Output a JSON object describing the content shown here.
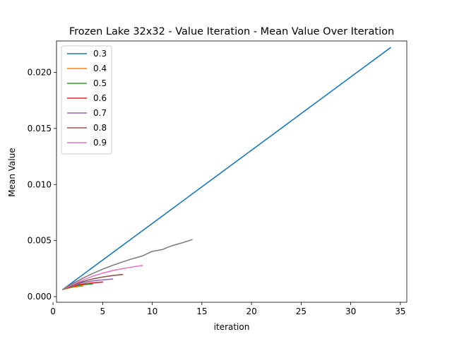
{
  "chart_data": {
    "type": "line",
    "title": "Frozen Lake 32x32 - Value Iteration - Mean Value Over Iteration",
    "xlabel": "iteration",
    "ylabel": "Mean Value",
    "xlim": [
      0.35,
      35.65
    ],
    "ylim": [
      -0.0005,
      0.0228
    ],
    "xticks": [
      0,
      5,
      10,
      15,
      20,
      25,
      30,
      35
    ],
    "xtick_labels": [
      "0",
      "5",
      "10",
      "15",
      "20",
      "25",
      "30",
      "35"
    ],
    "yticks": [
      0.0,
      0.005,
      0.01,
      0.015,
      0.02
    ],
    "ytick_labels": [
      "0.000",
      "0.005",
      "0.010",
      "0.015",
      "0.020"
    ],
    "grid": false,
    "legend_position": "upper-left",
    "series": [
      {
        "name": "0.3",
        "color": "#1f77b4",
        "x": [
          1,
          34
        ],
        "y": [
          0.00065,
          0.0222
        ]
      },
      {
        "name": "0.4",
        "color": "#ff7f0e",
        "x": [
          1,
          2,
          3
        ],
        "y": [
          0.00065,
          0.00085,
          0.00095
        ]
      },
      {
        "name": "0.5",
        "color": "#2ca02c",
        "x": [
          1,
          2,
          3,
          4
        ],
        "y": [
          0.00065,
          0.0009,
          0.00105,
          0.00115
        ]
      },
      {
        "name": "0.6",
        "color": "#d62728",
        "x": [
          1,
          2,
          3,
          4,
          5
        ],
        "y": [
          0.00065,
          0.00095,
          0.00112,
          0.00123,
          0.0013
        ]
      },
      {
        "name": "0.7",
        "color": "#9467bd",
        "x": [
          1,
          2,
          3,
          4,
          5,
          6
        ],
        "y": [
          0.00065,
          0.001,
          0.00125,
          0.0014,
          0.0015,
          0.00157
        ]
      },
      {
        "name": "0.8",
        "color": "#8c564b",
        "x": [
          1,
          2,
          3,
          4,
          5,
          6,
          7
        ],
        "y": [
          0.00065,
          0.00105,
          0.00135,
          0.00158,
          0.00175,
          0.00188,
          0.00198
        ]
      },
      {
        "name": "0.9",
        "color": "#e377c2",
        "x": [
          1,
          2,
          3,
          4,
          5,
          6,
          7,
          8,
          9
        ],
        "y": [
          0.00065,
          0.0011,
          0.00148,
          0.00182,
          0.0021,
          0.00232,
          0.0025,
          0.00265,
          0.00278
        ]
      },
      {
        "name": "",
        "color": "#7f7f7f",
        "x": [
          1,
          2,
          3,
          4,
          5,
          6,
          7,
          8,
          9,
          10,
          11,
          12,
          13,
          14
        ],
        "y": [
          0.00065,
          0.00118,
          0.00165,
          0.00207,
          0.00245,
          0.00279,
          0.0031,
          0.00338,
          0.00363,
          0.00404,
          0.0042,
          0.00455,
          0.0048,
          0.00508
        ]
      }
    ]
  }
}
